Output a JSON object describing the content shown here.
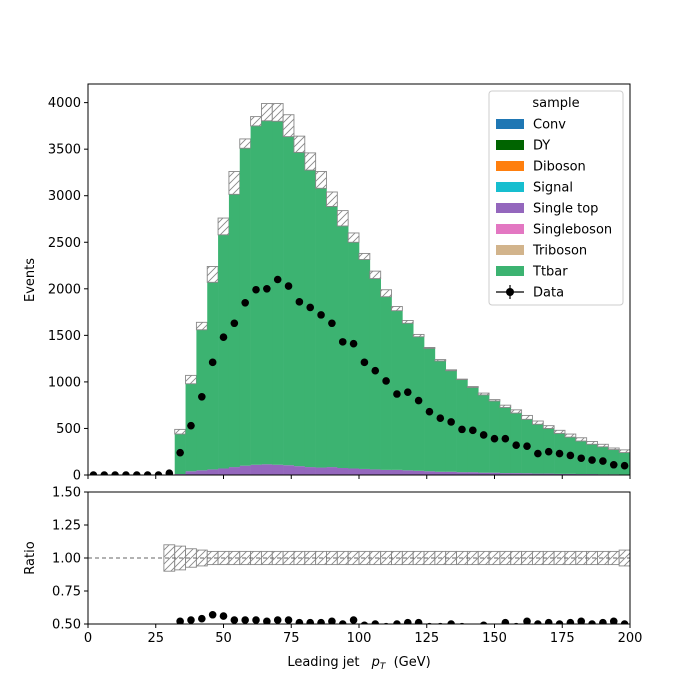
{
  "chart_data": {
    "type": "bar",
    "xlabel": "Leading jet",
    "xlabel_symbol": "p",
    "xlabel_sub": "T",
    "xlabel_unit": "(GeV)",
    "xlim": [
      0,
      200
    ],
    "xticks": [
      "0",
      "25",
      "50",
      "75",
      "100",
      "125",
      "150",
      "175",
      "200"
    ],
    "xtick_values": [
      0,
      25,
      50,
      75,
      100,
      125,
      150,
      175,
      200
    ],
    "bin_width": 4,
    "bin_edges_start": 0,
    "top_panel": {
      "ylabel": "Events",
      "ylim": [
        0,
        4200
      ],
      "yticks": [
        "0",
        "500",
        "1000",
        "1500",
        "2000",
        "2500",
        "3000",
        "3500",
        "4000"
      ],
      "ytick_values": [
        0,
        500,
        1000,
        1500,
        2000,
        2500,
        3000,
        3500,
        4000
      ]
    },
    "ratio_panel": {
      "ylabel": "Ratio",
      "ylim": [
        0.5,
        1.5
      ],
      "yticks": [
        "0.50",
        "0.75",
        "1.00",
        "1.25",
        "1.50"
      ],
      "ytick_values": [
        0.5,
        0.75,
        1.0,
        1.25,
        1.5
      ]
    },
    "legend": {
      "title": "sample",
      "placement": "top-right",
      "entries": [
        {
          "label": "Conv",
          "color": "#1f77b4",
          "kind": "patch"
        },
        {
          "label": "DY",
          "color": "#006400",
          "kind": "patch"
        },
        {
          "label": "Diboson",
          "color": "#ff7f0e",
          "kind": "patch"
        },
        {
          "label": "Signal",
          "color": "#17becf",
          "kind": "patch"
        },
        {
          "label": "Single top",
          "color": "#9467bd",
          "kind": "patch"
        },
        {
          "label": "Singleboson",
          "color": "#e377c2",
          "kind": "patch"
        },
        {
          "label": "Triboson",
          "color": "#d2b48c",
          "kind": "patch"
        },
        {
          "label": "Ttbar",
          "color": "#3cb371",
          "kind": "patch"
        },
        {
          "label": "Data",
          "color": "#000000",
          "kind": "errorbar"
        }
      ]
    },
    "series": [
      {
        "name": "Single top",
        "color": "#9467bd",
        "values": [
          0,
          0,
          0,
          0,
          0,
          0,
          0,
          0,
          10,
          40,
          50,
          60,
          70,
          85,
          100,
          110,
          115,
          110,
          105,
          95,
          85,
          80,
          85,
          75,
          70,
          65,
          60,
          55,
          55,
          50,
          45,
          40,
          35,
          35,
          30,
          30,
          25,
          25,
          20,
          20,
          18,
          15,
          15,
          12,
          12,
          10,
          10,
          8,
          8,
          6
        ]
      },
      {
        "name": "Ttbar",
        "color": "#3cb371",
        "values": [
          0,
          0,
          0,
          0,
          0,
          0,
          0,
          0,
          430,
          940,
          1510,
          2010,
          2510,
          2930,
          3410,
          3640,
          3690,
          3690,
          3530,
          3370,
          3190,
          3000,
          2800,
          2600,
          2430,
          2250,
          2050,
          1860,
          1710,
          1580,
          1440,
          1320,
          1190,
          1085,
          995,
          910,
          835,
          770,
          705,
          645,
          580,
          530,
          485,
          435,
          395,
          355,
          320,
          295,
          265,
          235
        ]
      }
    ],
    "mc_total_with_unc": [
      0,
      0,
      0,
      0,
      0,
      0,
      0,
      0,
      490,
      1070,
      1640,
      2240,
      2760,
      3260,
      3610,
      3850,
      3990,
      3990,
      3870,
      3640,
      3460,
      3260,
      3040,
      2840,
      2600,
      2380,
      2190,
      1990,
      1810,
      1660,
      1510,
      1370,
      1240,
      1130,
      1030,
      950,
      880,
      810,
      750,
      700,
      640,
      580,
      530,
      480,
      440,
      400,
      360,
      330,
      290,
      270
    ],
    "data": {
      "name": "Data",
      "x": [
        2,
        6,
        10,
        14,
        18,
        22,
        26,
        30,
        34,
        38,
        42,
        46,
        50,
        54,
        58,
        62,
        66,
        70,
        74,
        78,
        82,
        86,
        90,
        94,
        98,
        102,
        106,
        110,
        114,
        118,
        122,
        126,
        130,
        134,
        138,
        142,
        146,
        150,
        154,
        158,
        162,
        166,
        170,
        174,
        178,
        182,
        186,
        190,
        194,
        198
      ],
      "y": [
        0,
        0,
        0,
        0,
        0,
        0,
        0,
        20,
        240,
        530,
        840,
        1210,
        1480,
        1630,
        1850,
        1990,
        2000,
        2100,
        2030,
        1860,
        1800,
        1720,
        1630,
        1430,
        1410,
        1210,
        1120,
        1010,
        870,
        890,
        800,
        680,
        610,
        570,
        490,
        480,
        430,
        390,
        390,
        320,
        310,
        230,
        250,
        230,
        210,
        180,
        160,
        150,
        110,
        100
      ]
    },
    "ratio_points": {
      "x": [
        34,
        38,
        42,
        46,
        50,
        54,
        58,
        62,
        66,
        70,
        74,
        78,
        82,
        86,
        90,
        94,
        98,
        102,
        106,
        110,
        114,
        118,
        122,
        126,
        130,
        134,
        138,
        142,
        146,
        150,
        154,
        158,
        162,
        166,
        170,
        174,
        178,
        182,
        186,
        190,
        194,
        198
      ],
      "y": [
        0.52,
        0.53,
        0.54,
        0.57,
        0.56,
        0.53,
        0.53,
        0.53,
        0.52,
        0.53,
        0.53,
        0.51,
        0.51,
        0.51,
        0.52,
        0.5,
        0.53,
        0.49,
        0.5,
        0.48,
        0.5,
        0.51,
        0.51,
        0.48,
        0.48,
        0.5,
        0.48,
        0.47,
        0.49,
        0.47,
        0.51,
        0.48,
        0.52,
        0.5,
        0.51,
        0.5,
        0.51,
        0.52,
        0.5,
        0.51,
        0.52,
        0.5
      ]
    },
    "ratio_unc_half_width": [
      0,
      0,
      0,
      0,
      0,
      0,
      0,
      0.1,
      0.09,
      0.07,
      0.06,
      0.05,
      0.05,
      0.05,
      0.05,
      0.05,
      0.05,
      0.05,
      0.05,
      0.05,
      0.05,
      0.05,
      0.05,
      0.05,
      0.05,
      0.05,
      0.05,
      0.05,
      0.05,
      0.05,
      0.05,
      0.05,
      0.05,
      0.05,
      0.05,
      0.05,
      0.05,
      0.05,
      0.05,
      0.05,
      0.05,
      0.05,
      0.05,
      0.05,
      0.05,
      0.05,
      0.05,
      0.05,
      0.05,
      0.06
    ]
  }
}
